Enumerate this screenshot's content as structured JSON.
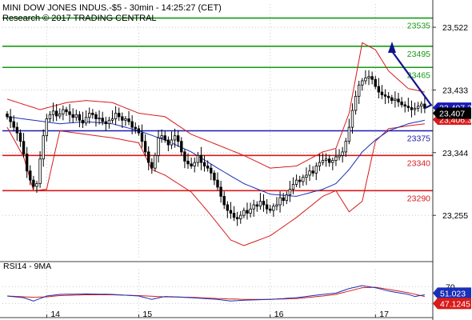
{
  "header": {
    "title": "MINI DOW JONES INDUS.-$5 - 30min - 14:25:27 (CET)",
    "source": "Research © 2017 TRADING CENTRAL"
  },
  "colors": {
    "bands": "#d81b1b",
    "ma": "#1a2fb8",
    "resistance": "#159a15",
    "pivot": "#1a1ab4",
    "support": "#d81b1b",
    "arrow": "#10148c",
    "candle": "#000000",
    "rsi": "#1a2fb8",
    "rsi_ma": "#d81b1b"
  },
  "chart_data": [
    {
      "type": "candlestick",
      "x_tick_labels": [
        "14",
        "15",
        "16",
        "17"
      ],
      "y_tick_labels": [
        "23,522",
        "23,433",
        "23,344",
        "23,255"
      ],
      "ylim": [
        23195,
        23555
      ],
      "levels": [
        {
          "value": 23535,
          "label": "23535",
          "kind": "resistance"
        },
        {
          "value": 23495,
          "label": "23495",
          "kind": "resistance"
        },
        {
          "value": 23465,
          "label": "23465",
          "kind": "resistance"
        },
        {
          "value": 23375,
          "label": "23375",
          "kind": "pivot"
        },
        {
          "value": 23340,
          "label": "23340",
          "kind": "support"
        },
        {
          "value": 23290,
          "label": "23290",
          "kind": "support"
        }
      ],
      "price_tags": [
        {
          "value": 23407.2,
          "label": "23,407.2",
          "kind": "upper"
        },
        {
          "value": 23407,
          "label": "23,407",
          "kind": "last"
        },
        {
          "value": 23406.3,
          "label": "23,406.3",
          "kind": "lower"
        }
      ],
      "close": [
        23395,
        23388,
        23380,
        23372,
        23360,
        23342,
        23318,
        23305,
        23296,
        23300,
        23335,
        23368,
        23392,
        23398,
        23403,
        23396,
        23399,
        23405,
        23402,
        23398,
        23394,
        23398,
        23390,
        23386,
        23394,
        23400,
        23398,
        23392,
        23393,
        23388,
        23385,
        23390,
        23392,
        23400,
        23395,
        23390,
        23392,
        23388,
        23380,
        23378,
        23372,
        23360,
        23345,
        23330,
        23322,
        23340,
        23365,
        23368,
        23362,
        23355,
        23362,
        23368,
        23360,
        23345,
        23332,
        23328,
        23325,
        23330,
        23340,
        23330,
        23325,
        23322,
        23315,
        23305,
        23295,
        23282,
        23270,
        23262,
        23258,
        23252,
        23250,
        23255,
        23262,
        23258,
        23264,
        23270,
        23268,
        23275,
        23270,
        23264,
        23262,
        23268,
        23270,
        23280,
        23276,
        23284,
        23292,
        23299,
        23305,
        23303,
        23309,
        23312,
        23318,
        23315,
        23325,
        23330,
        23333,
        23335,
        23330,
        23333,
        23338,
        23340,
        23345,
        23360,
        23380,
        23404,
        23424,
        23440,
        23446,
        23450,
        23452,
        23448,
        23438,
        23430,
        23426,
        23424,
        23422,
        23418,
        23420,
        23416,
        23412,
        23410,
        23408,
        23405,
        23407,
        23410,
        23413,
        23407
      ],
      "bands_upper_anchors": [
        [
          0,
          23420
        ],
        [
          10,
          23405
        ],
        [
          18,
          23415
        ],
        [
          24,
          23418
        ],
        [
          32,
          23415
        ],
        [
          40,
          23400
        ],
        [
          48,
          23395
        ],
        [
          56,
          23370
        ],
        [
          64,
          23355
        ],
        [
          72,
          23340
        ],
        [
          80,
          23322
        ],
        [
          88,
          23325
        ],
        [
          96,
          23345
        ],
        [
          100,
          23350
        ],
        [
          104,
          23400
        ],
        [
          108,
          23500
        ],
        [
          112,
          23490
        ],
        [
          116,
          23460
        ],
        [
          122,
          23435
        ],
        [
          127,
          23430
        ]
      ],
      "bands_lower_anchors": [
        [
          0,
          23380
        ],
        [
          5,
          23338
        ],
        [
          8,
          23290
        ],
        [
          12,
          23292
        ],
        [
          16,
          23375
        ],
        [
          24,
          23370
        ],
        [
          32,
          23365
        ],
        [
          40,
          23358
        ],
        [
          44,
          23320
        ],
        [
          48,
          23312
        ],
        [
          56,
          23288
        ],
        [
          62,
          23255
        ],
        [
          68,
          23220
        ],
        [
          72,
          23212
        ],
        [
          80,
          23226
        ],
        [
          88,
          23252
        ],
        [
          96,
          23282
        ],
        [
          100,
          23290
        ],
        [
          104,
          23260
        ],
        [
          108,
          23275
        ],
        [
          112,
          23360
        ],
        [
          116,
          23378
        ],
        [
          122,
          23382
        ],
        [
          127,
          23385
        ]
      ],
      "ma_anchors": [
        [
          0,
          23395
        ],
        [
          8,
          23390
        ],
        [
          16,
          23385
        ],
        [
          24,
          23388
        ],
        [
          32,
          23385
        ],
        [
          40,
          23375
        ],
        [
          48,
          23362
        ],
        [
          56,
          23345
        ],
        [
          64,
          23322
        ],
        [
          72,
          23300
        ],
        [
          80,
          23285
        ],
        [
          88,
          23282
        ],
        [
          96,
          23292
        ],
        [
          100,
          23300
        ],
        [
          104,
          23320
        ],
        [
          108,
          23345
        ],
        [
          112,
          23362
        ],
        [
          116,
          23375
        ],
        [
          122,
          23385
        ],
        [
          127,
          23390
        ]
      ]
    },
    {
      "type": "line",
      "title": "RSI14 - 9MA",
      "y_tick_labels": [
        "70",
        "30"
      ],
      "ylim": [
        0,
        100
      ],
      "value_tags": [
        {
          "value": 51.023,
          "label": "51.023",
          "kind": "rsi"
        },
        {
          "value": 47.1245,
          "label": "47.1245",
          "kind": "ma"
        }
      ],
      "rsi_anchors": [
        [
          0,
          48
        ],
        [
          5,
          44
        ],
        [
          8,
          36
        ],
        [
          12,
          48
        ],
        [
          16,
          52
        ],
        [
          24,
          53
        ],
        [
          32,
          52
        ],
        [
          40,
          48
        ],
        [
          44,
          40
        ],
        [
          48,
          47
        ],
        [
          56,
          44
        ],
        [
          64,
          40
        ],
        [
          68,
          36
        ],
        [
          72,
          38
        ],
        [
          80,
          40
        ],
        [
          88,
          44
        ],
        [
          96,
          52
        ],
        [
          100,
          55
        ],
        [
          104,
          66
        ],
        [
          108,
          73
        ],
        [
          112,
          68
        ],
        [
          116,
          60
        ],
        [
          122,
          52
        ],
        [
          124,
          47
        ],
        [
          127,
          51
        ]
      ],
      "ma_anchors": [
        [
          0,
          48
        ],
        [
          8,
          45
        ],
        [
          12,
          46
        ],
        [
          16,
          49
        ],
        [
          24,
          51
        ],
        [
          32,
          51
        ],
        [
          40,
          49
        ],
        [
          48,
          46
        ],
        [
          56,
          45
        ],
        [
          64,
          42
        ],
        [
          72,
          40
        ],
        [
          80,
          40
        ],
        [
          88,
          42
        ],
        [
          96,
          48
        ],
        [
          100,
          52
        ],
        [
          104,
          60
        ],
        [
          108,
          68
        ],
        [
          112,
          69
        ],
        [
          116,
          64
        ],
        [
          122,
          56
        ],
        [
          127,
          47
        ]
      ]
    }
  ]
}
